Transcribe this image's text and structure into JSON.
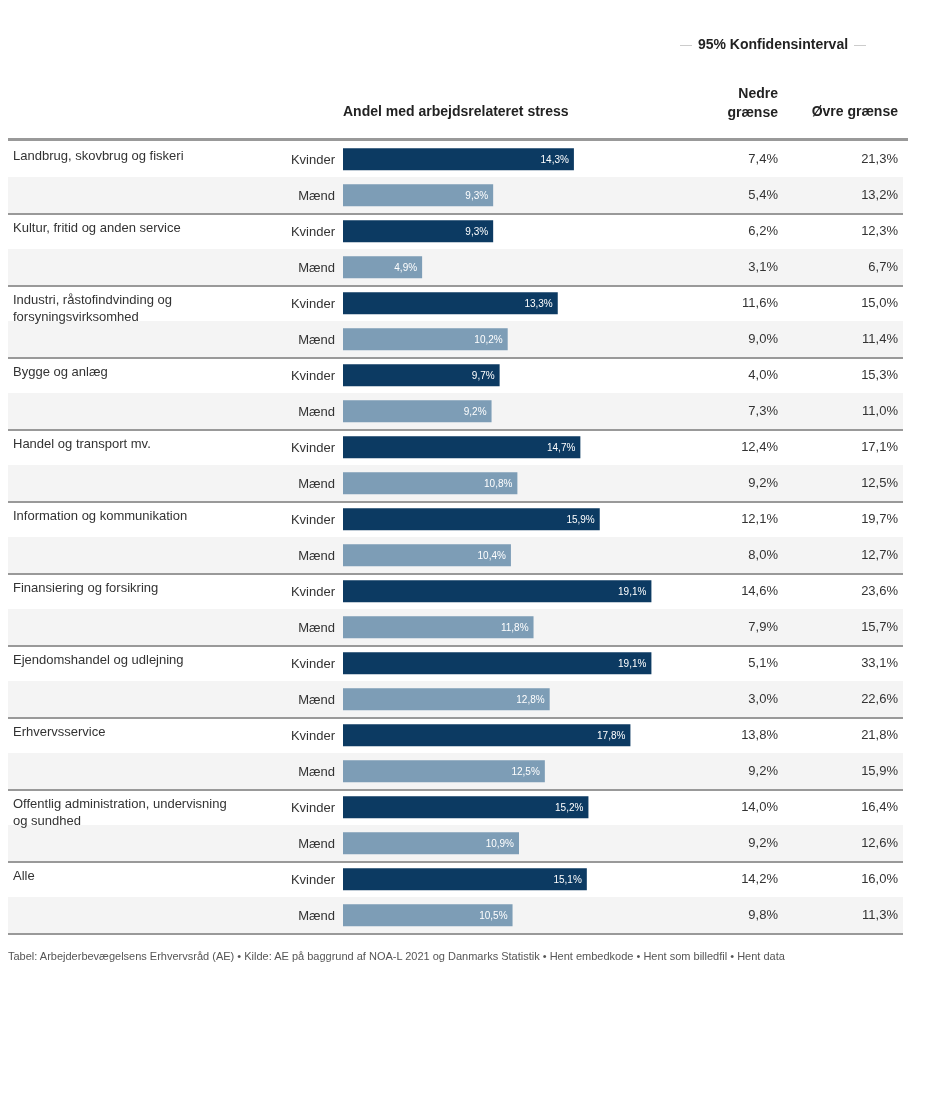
{
  "chart_data": {
    "type": "bar",
    "orientation": "horizontal",
    "xlabel": "Andel med arbejdsrelateret stress",
    "categories": [
      "Kvinder",
      "Mænd",
      "Kvinder",
      "Mænd",
      "Kvinder",
      "Mænd",
      "Kvinder",
      "Mænd",
      "Kvinder",
      "Mænd",
      "Kvinder",
      "Mænd",
      "Kvinder",
      "Mænd",
      "Kvinder",
      "Mænd",
      "Kvinder",
      "Mænd",
      "Kvinder",
      "Mænd",
      "Kvinder",
      "Mænd"
    ],
    "values": [
      14.3,
      9.3,
      9.3,
      4.9,
      13.3,
      10.2,
      9.7,
      9.2,
      14.7,
      10.8,
      15.9,
      10.4,
      19.1,
      11.8,
      19.1,
      12.8,
      17.8,
      12.5,
      15.2,
      10.9,
      15.1,
      10.5
    ],
    "colors": [
      "#0c3a62",
      "#7d9db6",
      "#0c3a62",
      "#7d9db6",
      "#0c3a62",
      "#7d9db6",
      "#0c3a62",
      "#7d9db6",
      "#0c3a62",
      "#7d9db6",
      "#0c3a62",
      "#7d9db6",
      "#0c3a62",
      "#7d9db6",
      "#0c3a62",
      "#7d9db6",
      "#0c3a62",
      "#7d9db6",
      "#0c3a62",
      "#7d9db6",
      "#0c3a62",
      "#7d9db6"
    ],
    "data_labels": true,
    "value_labels": [
      "14,3%",
      "9,3%",
      "9,3%",
      "4,9%",
      "13,3%",
      "10,2%",
      "9,7%",
      "9,2%",
      "14,7%",
      "10,8%",
      "15,9%",
      "10,4%",
      "19,1%",
      "11,8%",
      "19,1%",
      "12,8%",
      "17,8%",
      "12,5%",
      "15,2%",
      "10,9%",
      "15,1%",
      "10,5%"
    ],
    "annotations": [
      "95% Konfidensinterval",
      "Nedre grænse",
      "Øvre grænse",
      "Landbrug, skovbrug og fiskeri",
      "Kultur, fritid og anden service",
      "Industri, råstofindvinding og forsyningsvirksomhed",
      "Bygge og anlæg",
      "Handel og transport mv.",
      "Information og kommunikation",
      "Finansiering og forsikring",
      "Ejendomshandel og udlejning",
      "Erhvervsservice",
      "Offentlig administration, undervisning og sundhed",
      "Alle",
      "7,4%",
      "21,3%",
      "5,4%",
      "13,2%",
      "6,2%",
      "12,3%",
      "3,1%",
      "6,7%",
      "11,6%",
      "15,0%",
      "9,0%",
      "11,4%",
      "4,0%",
      "15,3%",
      "7,3%",
      "11,0%",
      "12,4%",
      "17,1%",
      "9,2%",
      "12,5%",
      "12,1%",
      "19,7%",
      "8,0%",
      "12,7%",
      "14,6%",
      "23,6%",
      "7,9%",
      "15,7%",
      "5,1%",
      "33,1%",
      "3,0%",
      "22,6%",
      "13,8%",
      "21,8%",
      "9,2%",
      "15,9%",
      "14,0%",
      "16,4%",
      "9,2%",
      "12,6%",
      "14,2%",
      "16,0%",
      "9,8%",
      "11,3%",
      "Tabel: Arbejderbevægelsens Erhvervsråd (AE) • Kilde: AE på baggrund af NOA-L 2021 og Danmarks Statistik • Hent embedkode • Hent som billedfil • Hent data"
    ]
  }
}
